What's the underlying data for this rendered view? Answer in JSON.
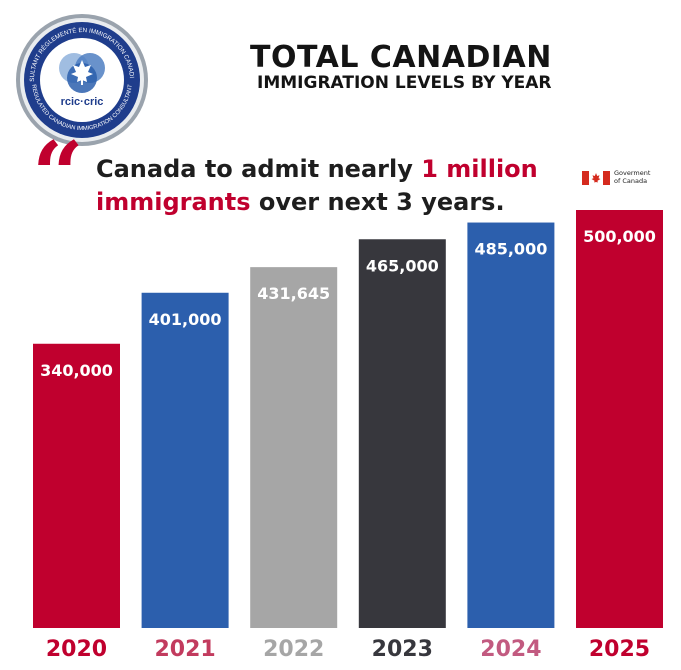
{
  "header": {
    "title_line1": "TOTAL CANADIAN",
    "title_line2": "IMMIGRATION LEVELS BY YEAR"
  },
  "quote": {
    "mark": "“",
    "text_a": "Canada to admit nearly ",
    "highlight_a": "1 million",
    "highlight_b": "immigrants",
    "text_b": " over next 3 years."
  },
  "logo": {
    "ring_text_top": "CONSULTANT RÉGLEMENTÉ EN IMMIGRATION CANADIENNE",
    "ring_text_bottom": "REGULATED CANADIAN IMMIGRATION CONSULTANT",
    "wordmark": "rcic·cric"
  },
  "government_badge": {
    "line1": "Goverment",
    "line2": "of Canada"
  },
  "colors": {
    "red": "#c0002e",
    "blue": "#2c5fad",
    "gray": "#a6a6a6",
    "dark": "#37373d"
  },
  "chart_data": {
    "type": "bar",
    "title": "TOTAL CANADIAN IMMIGRATION LEVELS BY YEAR",
    "categories": [
      "2020",
      "2021",
      "2022",
      "2023",
      "2024",
      "2025"
    ],
    "values": [
      340000,
      401000,
      431645,
      465000,
      485000,
      500000
    ],
    "value_labels": [
      "340,000",
      "401,000",
      "431,645",
      "465,000",
      "485,000",
      "500,000"
    ],
    "bar_colors": [
      "#c0002e",
      "#2c5fad",
      "#a6a6a6",
      "#37373d",
      "#2c5fad",
      "#c0002e"
    ],
    "category_label_colors": [
      "#c0002e",
      "#c23b5e",
      "#a6a6a6",
      "#37373d",
      "#c25a80",
      "#c0002e"
    ],
    "ylim": [
      0,
      600000
    ],
    "grid": false,
    "xlabel": "",
    "ylabel": ""
  }
}
